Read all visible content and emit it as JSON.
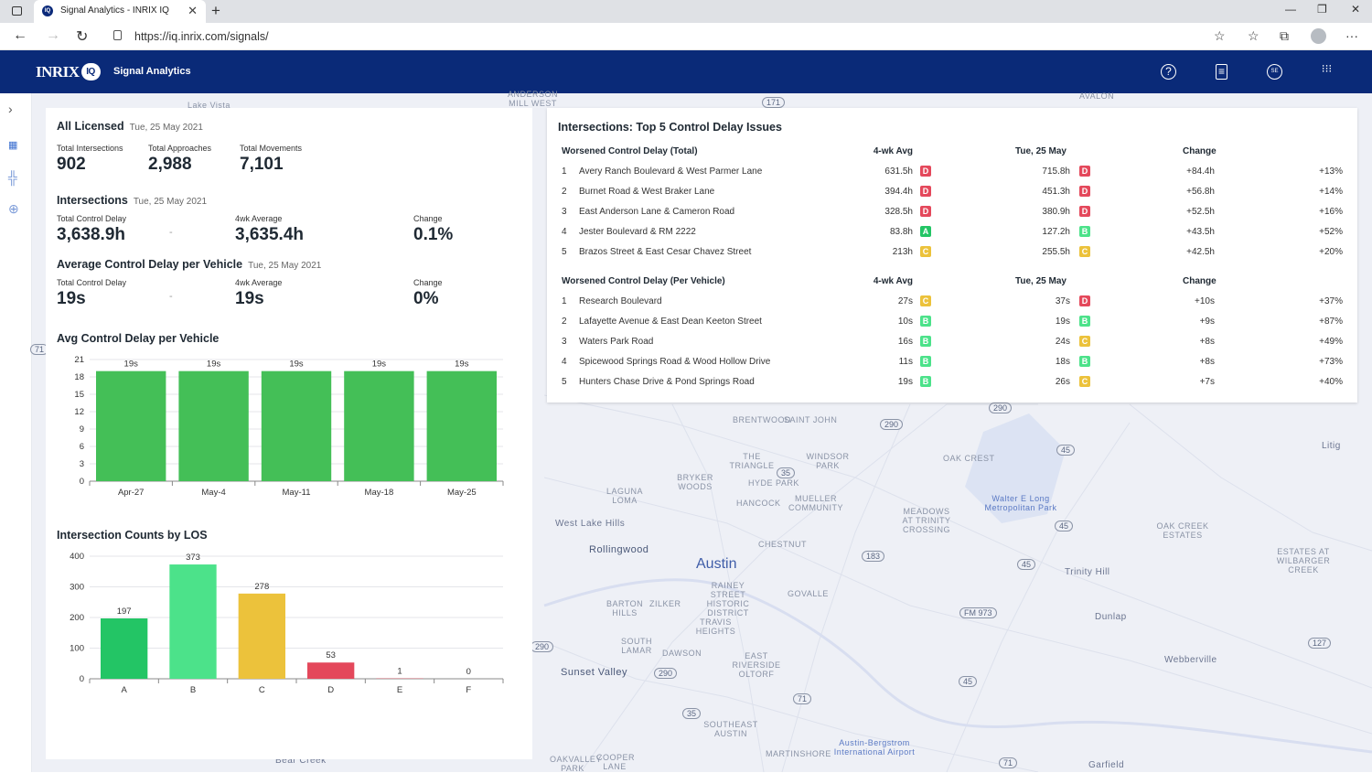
{
  "browser": {
    "tab_title": "Signal Analytics - INRIX IQ",
    "url": "https://iq.inrix.com/signals/"
  },
  "app": {
    "logo": "INRIX",
    "logo_badge": "IQ",
    "title": "Signal Analytics",
    "header_icons": [
      "help-icon",
      "document-icon",
      "account-icon",
      "apps-grid-icon"
    ]
  },
  "sidebar": {
    "icons": [
      "expand-chevron-icon",
      "signal-analytics-icon",
      "intersection-icon",
      "crosshair-icon"
    ]
  },
  "summary": {
    "title": "All Licensed",
    "date": "Tue, 25 May 2021",
    "stats": [
      {
        "label": "Total Intersections",
        "value": "902"
      },
      {
        "label": "Total Approaches",
        "value": "2,988"
      },
      {
        "label": "Total Movements",
        "value": "7,101"
      }
    ]
  },
  "intersections": {
    "title": "Intersections",
    "date": "Tue, 25 May 2021",
    "total_label": "Total Control Delay",
    "total_value": "3,638.9h",
    "dash": "-",
    "avg_label": "4wk Average",
    "avg_value": "3,635.4h",
    "change_label": "Change",
    "change_value": "0.1%"
  },
  "avg_delay": {
    "title": "Average Control Delay per Vehicle",
    "date": "Tue, 25 May 2021",
    "total_label": "Total Control Delay",
    "total_value": "19s",
    "dash": "-",
    "avg_label": "4wk Average",
    "avg_value": "19s",
    "change_label": "Change",
    "change_value": "0%"
  },
  "charts_titles": {
    "avg_chart": "Avg Control Delay per Vehicle",
    "los_chart": "Intersection Counts by LOS"
  },
  "chart_data": [
    {
      "type": "bar",
      "title": "Avg Control Delay per Vehicle",
      "categories": [
        "Apr-27",
        "May-4",
        "May-11",
        "May-18",
        "May-25"
      ],
      "values": [
        19,
        19,
        19,
        19,
        19
      ],
      "data_labels": [
        "19s",
        "19s",
        "19s",
        "19s",
        "19s"
      ],
      "ylim": [
        0,
        21
      ],
      "yticks": [
        0,
        3,
        6,
        9,
        12,
        15,
        18,
        21
      ],
      "color": "#44bf57",
      "grid": true
    },
    {
      "type": "bar",
      "title": "Intersection Counts by LOS",
      "categories": [
        "A",
        "B",
        "C",
        "D",
        "E",
        "F"
      ],
      "values": [
        197,
        373,
        278,
        53,
        1,
        0
      ],
      "colors": [
        "#23c565",
        "#4ce28a",
        "#ecc23b",
        "#e4485b",
        "#e4485b",
        "#e4485b"
      ],
      "ylim": [
        0,
        400
      ],
      "yticks": [
        0,
        100,
        200,
        300,
        400
      ],
      "grid": true
    }
  ],
  "top5": {
    "title": "Intersections: Top 5 Control Delay Issues",
    "total": {
      "header": "Worsened Control Delay (Total)",
      "col_avg": "4-wk Avg",
      "col_day": "Tue, 25 May",
      "col_change": "Change",
      "rows": [
        {
          "rank": "1",
          "name": "Avery Ranch Boulevard & West Parmer Lane",
          "avg": "631.5h",
          "avg_los": "D",
          "day": "715.8h",
          "day_los": "D",
          "change": "+84.4h",
          "pct": "+13%"
        },
        {
          "rank": "2",
          "name": "Burnet Road & West Braker Lane",
          "avg": "394.4h",
          "avg_los": "D",
          "day": "451.3h",
          "day_los": "D",
          "change": "+56.8h",
          "pct": "+14%"
        },
        {
          "rank": "3",
          "name": "East Anderson Lane & Cameron Road",
          "avg": "328.5h",
          "avg_los": "D",
          "day": "380.9h",
          "day_los": "D",
          "change": "+52.5h",
          "pct": "+16%"
        },
        {
          "rank": "4",
          "name": "Jester Boulevard & RM 2222",
          "avg": "83.8h",
          "avg_los": "A",
          "day": "127.2h",
          "day_los": "B",
          "change": "+43.5h",
          "pct": "+52%"
        },
        {
          "rank": "5",
          "name": "Brazos Street & East Cesar Chavez Street",
          "avg": "213h",
          "avg_los": "C",
          "day": "255.5h",
          "day_los": "C",
          "change": "+42.5h",
          "pct": "+20%"
        }
      ]
    },
    "per_vehicle": {
      "header": "Worsened Control Delay (Per Vehicle)",
      "col_avg": "4-wk Avg",
      "col_day": "Tue, 25 May",
      "col_change": "Change",
      "rows": [
        {
          "rank": "1",
          "name": "Research Boulevard",
          "avg": "27s",
          "avg_los": "C",
          "day": "37s",
          "day_los": "D",
          "change": "+10s",
          "pct": "+37%"
        },
        {
          "rank": "2",
          "name": "Lafayette Avenue & East Dean Keeton Street",
          "avg": "10s",
          "avg_los": "B",
          "day": "19s",
          "day_los": "B",
          "change": "+9s",
          "pct": "+87%"
        },
        {
          "rank": "3",
          "name": "Waters Park Road",
          "avg": "16s",
          "avg_los": "B",
          "day": "24s",
          "day_los": "C",
          "change": "+8s",
          "pct": "+49%"
        },
        {
          "rank": "4",
          "name": "Spicewood Springs Road & Wood Hollow Drive",
          "avg": "11s",
          "avg_los": "B",
          "day": "18s",
          "day_los": "B",
          "change": "+8s",
          "pct": "+73%"
        },
        {
          "rank": "5",
          "name": "Hunters Chase Drive & Pond Springs Road",
          "avg": "19s",
          "avg_los": "B",
          "day": "26s",
          "day_los": "C",
          "change": "+7s",
          "pct": "+40%"
        }
      ]
    }
  },
  "los_colors": {
    "A": "#23c565",
    "B": "#4ce28a",
    "C": "#ecc23b",
    "D": "#e4485b"
  },
  "map": {
    "city": "Austin",
    "labels": [
      "BRENTWOOD",
      "SAINT JOHN",
      "THE TRIANGLE",
      "WINDSOR PARK",
      "OAK CREST",
      "BRYKER WOODS",
      "HYDE PARK",
      "LAGUNA LOMA",
      "HANCOCK",
      "MUELLER COMMUNITY",
      "Walter E Long Metropolitan Park",
      "MEADOWS AT TRINITY CROSSING",
      "West Lake Hills",
      "CHESTNUT",
      "OAK CREEK ESTATES",
      "Rollingwood",
      "Trinity Hill",
      "ESTATES AT WILBARGER CREEK",
      "RAINEY STREET HISTORIC DISTRICT",
      "GOVALLE",
      "BARTON HILLS",
      "ZILKER",
      "TRAVIS HEIGHTS",
      "Dunlap",
      "SOUTH LAMAR",
      "DAWSON",
      "EAST RIVERSIDE OLTORF",
      "Sunset Valley",
      "Webberville",
      "SOUTHEAST AUSTIN",
      "Austin-Bergstrom International Airport",
      "MARTINSHORE",
      "OAKVALLEY PARK",
      "COOPER LANE",
      "Bear Creek",
      "Garfield",
      "Litig",
      "ANDERSON MILL WEST",
      "AVALON",
      "Lake Vista"
    ],
    "shields": [
      "171",
      "290",
      "290",
      "45",
      "35",
      "45",
      "183",
      "45",
      "FM 973",
      "290",
      "290",
      "127",
      "45",
      "71",
      "35",
      "71",
      "71"
    ]
  }
}
